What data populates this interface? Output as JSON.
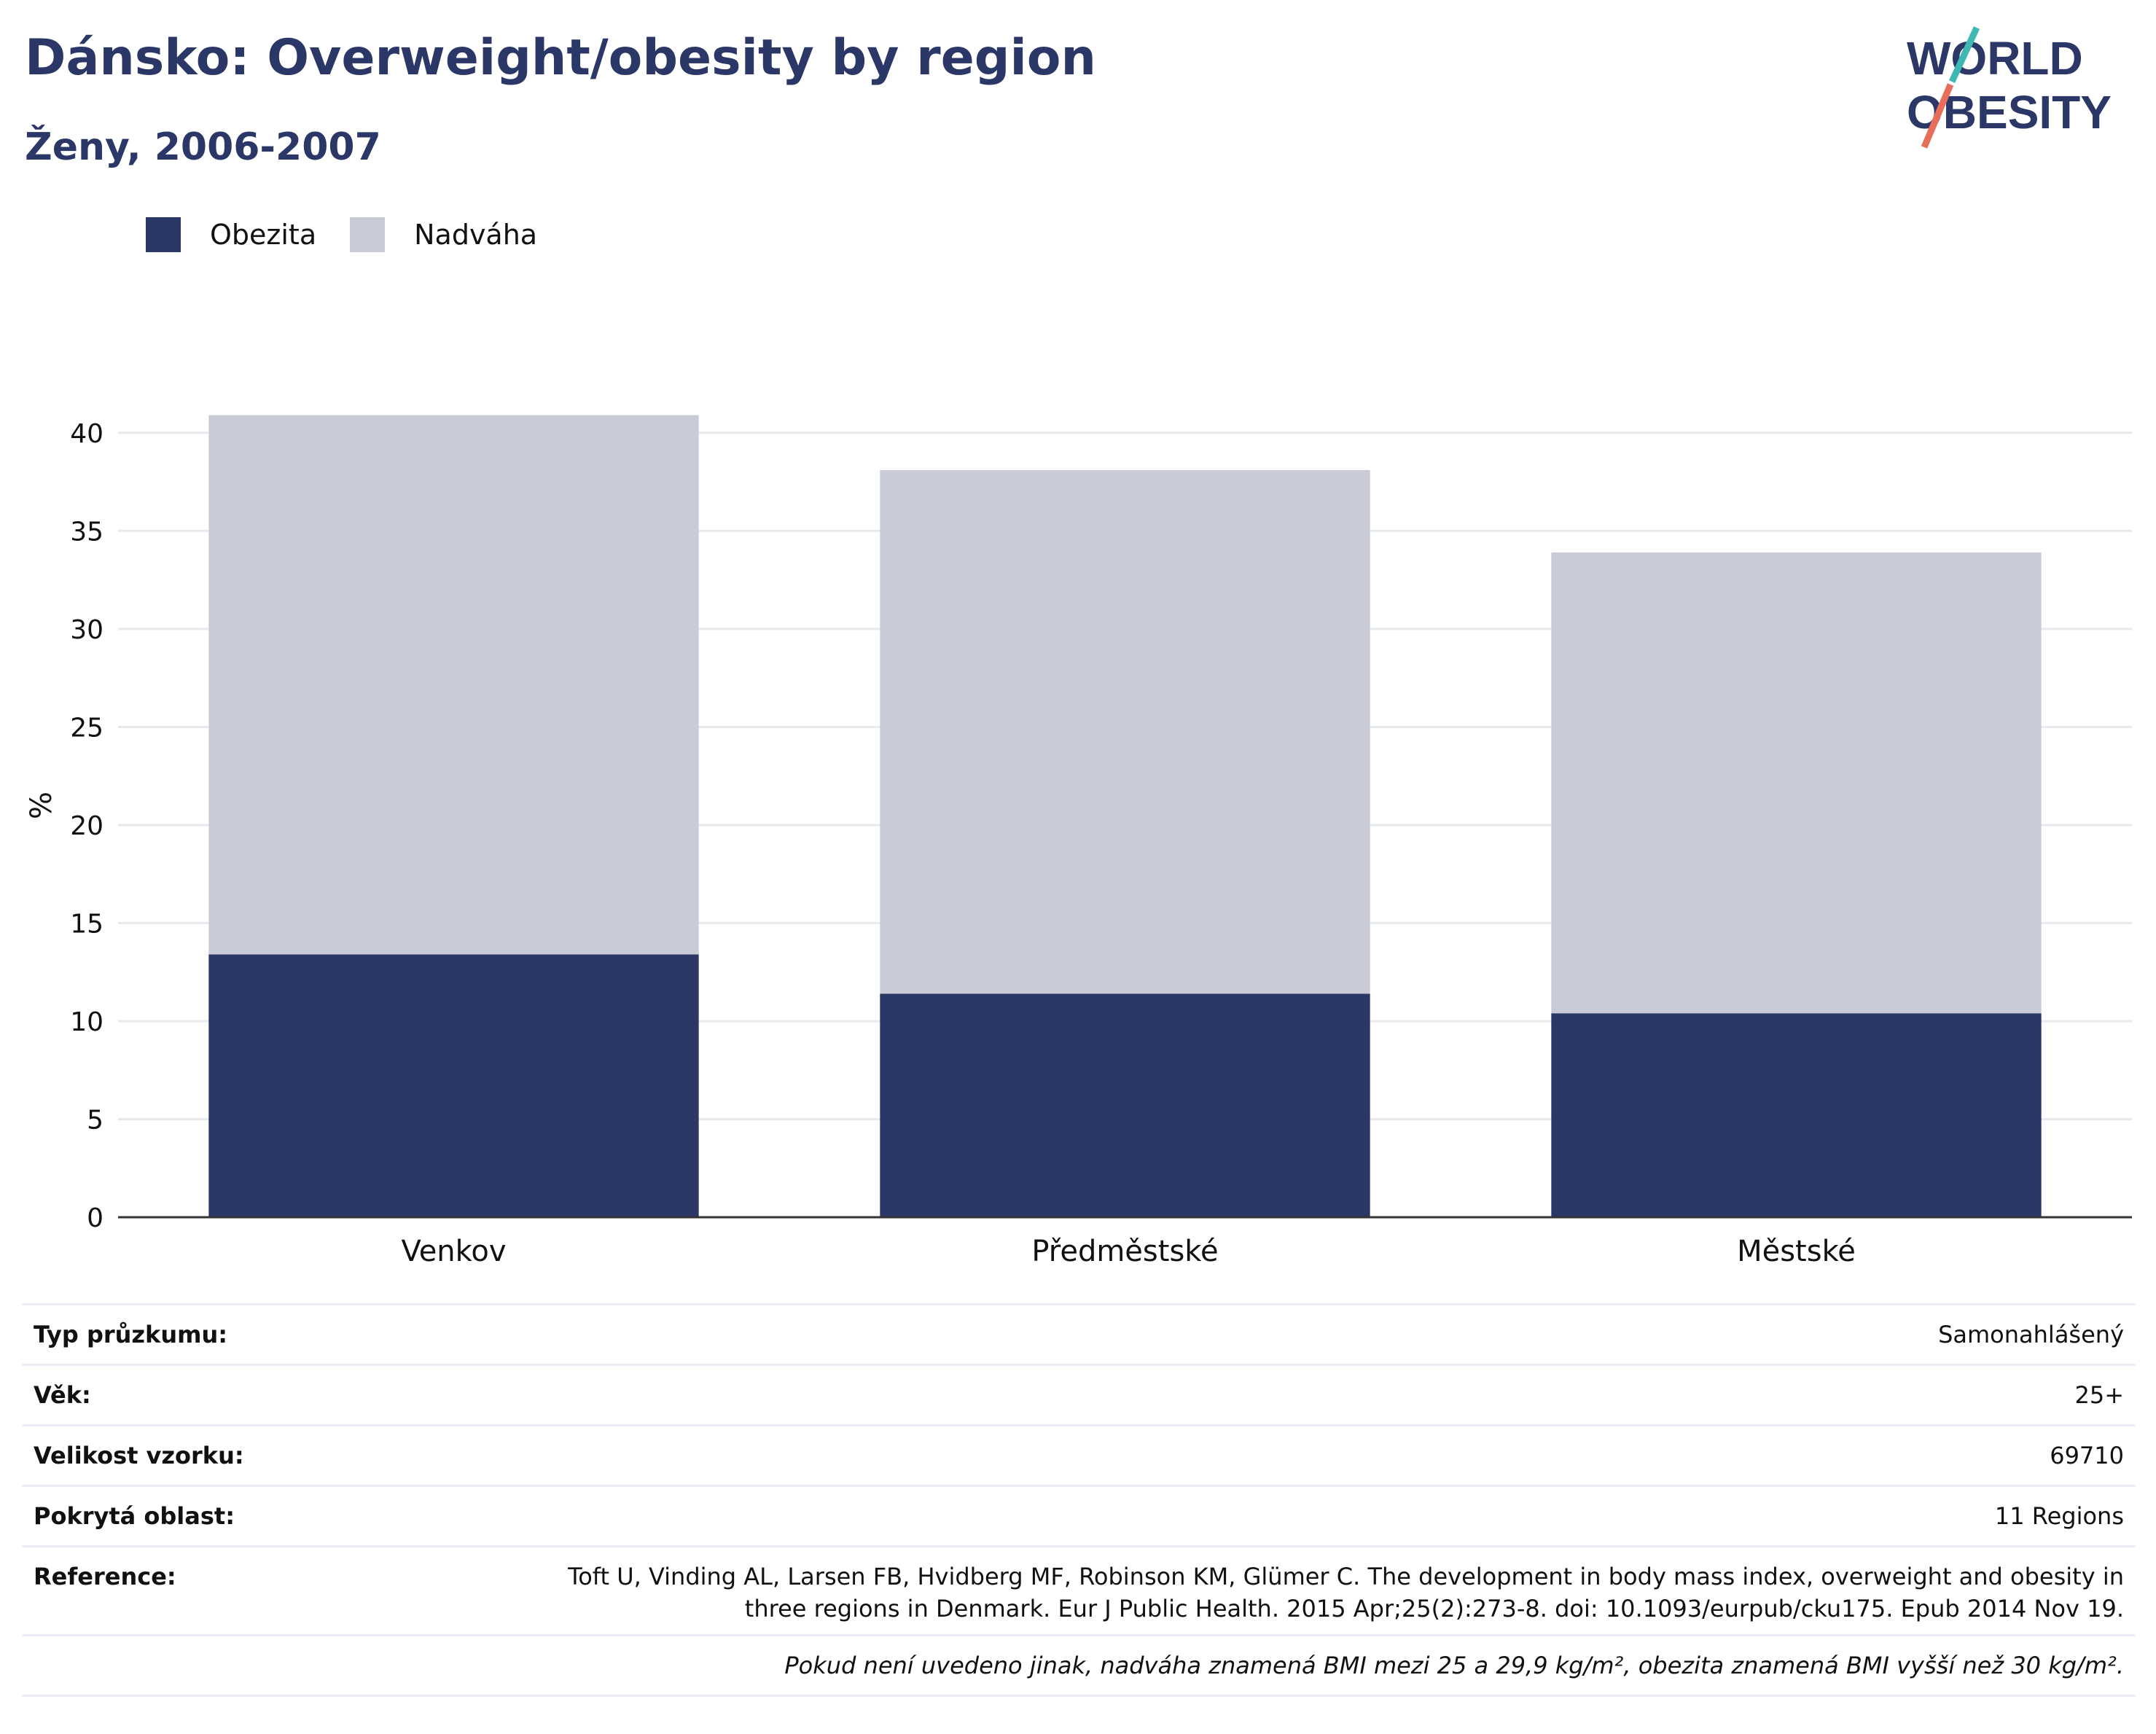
{
  "header": {
    "title": "Dánsko: Overweight/obesity by region",
    "subtitle": "Ženy, 2006-2007",
    "logo_line1": "WORLD",
    "logo_line2": "OBESITY"
  },
  "colors": {
    "obesity": "#2b3767",
    "overweight": "#c9ccd7",
    "title": "#2b3867",
    "logo_teal": "#3fb8b3",
    "logo_coral": "#e86e5c"
  },
  "chart_data": {
    "type": "bar",
    "stacked": true,
    "categories": [
      "Venkov",
      "Předměstské",
      "Městské"
    ],
    "series": [
      {
        "name": "Obezita",
        "values": [
          13.4,
          11.4,
          10.4
        ]
      },
      {
        "name": "Nadváha",
        "values": [
          27.5,
          26.7,
          23.5
        ]
      }
    ],
    "ylabel": "%",
    "ylim": [
      0,
      42
    ],
    "yticks": [
      0,
      5,
      10,
      15,
      20,
      25,
      30,
      35,
      40
    ],
    "grid": true,
    "legend": "top-left"
  },
  "info": {
    "rows": [
      {
        "label": "Typ průzkumu:",
        "value": "Samonahlášený"
      },
      {
        "label": "Věk:",
        "value": "25+"
      },
      {
        "label": "Velikost vzorku:",
        "value": "69710"
      },
      {
        "label": "Pokrytá oblast:",
        "value": "11 Regions"
      }
    ],
    "reference_label": "Reference:",
    "reference_line1": "Toft U, Vinding AL, Larsen FB, Hvidberg MF, Robinson KM, Glümer C. The development in body mass index, overweight and obesity in",
    "reference_line2": "three regions in Denmark. Eur J Public Health. 2015 Apr;25(2):273-8. doi: 10.1093/eurpub/cku175. Epub 2014 Nov 19.",
    "note": "Pokud není uvedeno jinak, nadváha znamená BMI mezi 25 a 29,9 kg/m², obezita znamená BMI vyšší než 30 kg/m²."
  }
}
